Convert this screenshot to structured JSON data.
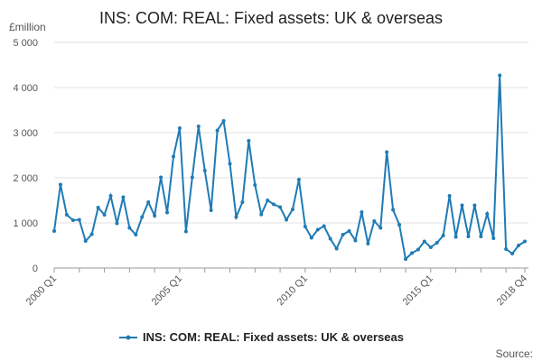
{
  "chart_data": {
    "type": "line",
    "title": "INS: COM: REAL: Fixed assets: UK & overseas",
    "ylabel": "£million",
    "xlabel": "",
    "ylim": [
      0,
      5000
    ],
    "yticks": [
      0,
      1000,
      2000,
      3000,
      4000,
      5000
    ],
    "ytick_labels": [
      "0",
      "1 000",
      "2 000",
      "3 000",
      "4 000",
      "5 000"
    ],
    "xtick_labels": [
      "2000 Q1",
      "2005 Q1",
      "2010 Q1",
      "2015 Q1",
      "2018 Q4"
    ],
    "xtick_index": [
      0,
      20,
      40,
      60,
      75
    ],
    "grid": "horizontal",
    "legend": "bottom",
    "color": "#1f7bb5",
    "series": [
      {
        "name": "INS: COM: REAL: Fixed assets: UK & overseas",
        "values": [
          820,
          1850,
          1180,
          1060,
          1070,
          600,
          750,
          1340,
          1180,
          1600,
          990,
          1570,
          890,
          740,
          1130,
          1460,
          1160,
          2010,
          1230,
          2470,
          3100,
          810,
          2010,
          3140,
          2160,
          1280,
          3050,
          3260,
          2310,
          1130,
          1460,
          2820,
          1840,
          1190,
          1500,
          1410,
          1350,
          1070,
          1300,
          1960,
          920,
          670,
          850,
          930,
          650,
          430,
          740,
          820,
          610,
          1240,
          540,
          1040,
          890,
          2570,
          1290,
          960,
          200,
          330,
          410,
          590,
          460,
          560,
          720,
          1600,
          690,
          1390,
          700,
          1390,
          700,
          1200,
          660,
          4270,
          420,
          320,
          500,
          590
        ]
      }
    ]
  },
  "source_label": "Source:"
}
